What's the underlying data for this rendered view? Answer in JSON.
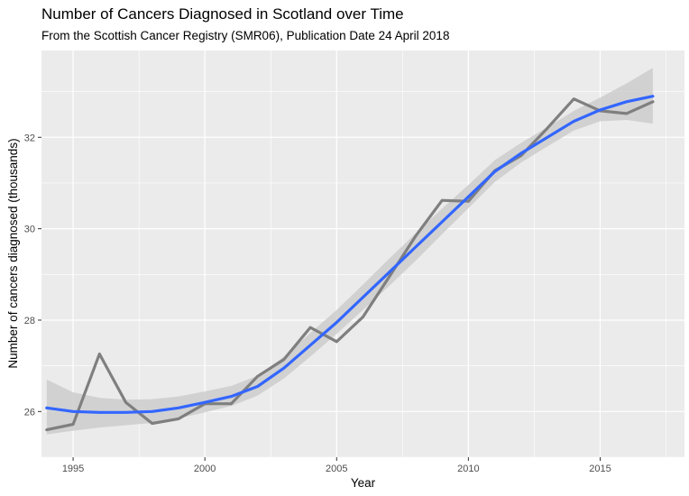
{
  "chart_data": {
    "type": "line",
    "title": "Number of Cancers Diagnosed in Scotland over Time",
    "subtitle": "From the Scottish Cancer Registry (SMR06), Publication Date 24 April 2018",
    "xlabel": "Year",
    "ylabel": "Number of cancers diagnosed (thousands)",
    "xlim": [
      1993.8,
      2018.2
    ],
    "ylim": [
      25.0,
      33.9
    ],
    "x_ticks": [
      1995,
      2000,
      2005,
      2010,
      2015
    ],
    "y_ticks": [
      26,
      28,
      30,
      32
    ],
    "grid": true,
    "series": [
      {
        "color": "#7f7f7f",
        "x": [
          1994,
          1995,
          1996,
          1997,
          1998,
          1999,
          2000,
          2001,
          2002,
          2003,
          2004,
          2005,
          2006,
          2007,
          2008,
          2009,
          2010,
          2011,
          2012,
          2013,
          2014,
          2015,
          2016,
          2017
        ],
        "values": [
          25.6,
          25.72,
          27.26,
          26.2,
          25.74,
          25.84,
          26.17,
          26.17,
          26.77,
          27.14,
          27.84,
          27.53,
          28.07,
          28.95,
          29.84,
          30.62,
          30.6,
          31.27,
          31.6,
          32.2,
          32.84,
          32.58,
          32.52,
          32.78
        ]
      },
      {
        "color": "#3366ff",
        "x": [
          1994,
          1995,
          1996,
          1997,
          1998,
          1999,
          2000,
          2001,
          2002,
          2003,
          2004,
          2005,
          2006,
          2007,
          2008,
          2009,
          2010,
          2011,
          2012,
          2013,
          2014,
          2015,
          2016,
          2017
        ],
        "values": [
          26.08,
          26.0,
          25.98,
          25.98,
          26.0,
          26.08,
          26.2,
          26.33,
          26.55,
          26.95,
          27.45,
          27.95,
          28.5,
          29.05,
          29.6,
          30.15,
          30.7,
          31.25,
          31.65,
          32.0,
          32.35,
          32.6,
          32.78,
          32.9
        ]
      }
    ],
    "confidence_band": {
      "color": "#cccccc",
      "x": [
        1994,
        1995,
        1996,
        1997,
        1998,
        1999,
        2000,
        2001,
        2002,
        2003,
        2004,
        2005,
        2006,
        2007,
        2008,
        2009,
        2010,
        2011,
        2012,
        2013,
        2014,
        2015,
        2016,
        2017
      ],
      "lower": [
        25.5,
        25.58,
        25.65,
        25.7,
        25.75,
        25.85,
        25.98,
        26.12,
        26.35,
        26.72,
        27.2,
        27.7,
        28.22,
        28.75,
        29.3,
        29.88,
        30.45,
        31.02,
        31.45,
        31.8,
        32.15,
        32.35,
        32.38,
        32.3
      ],
      "upper": [
        26.7,
        26.42,
        26.3,
        26.26,
        26.27,
        26.33,
        26.44,
        26.56,
        26.78,
        27.2,
        27.72,
        28.22,
        28.78,
        29.35,
        29.9,
        30.44,
        30.96,
        31.5,
        31.88,
        32.22,
        32.58,
        32.87,
        33.18,
        33.52
      ]
    }
  }
}
